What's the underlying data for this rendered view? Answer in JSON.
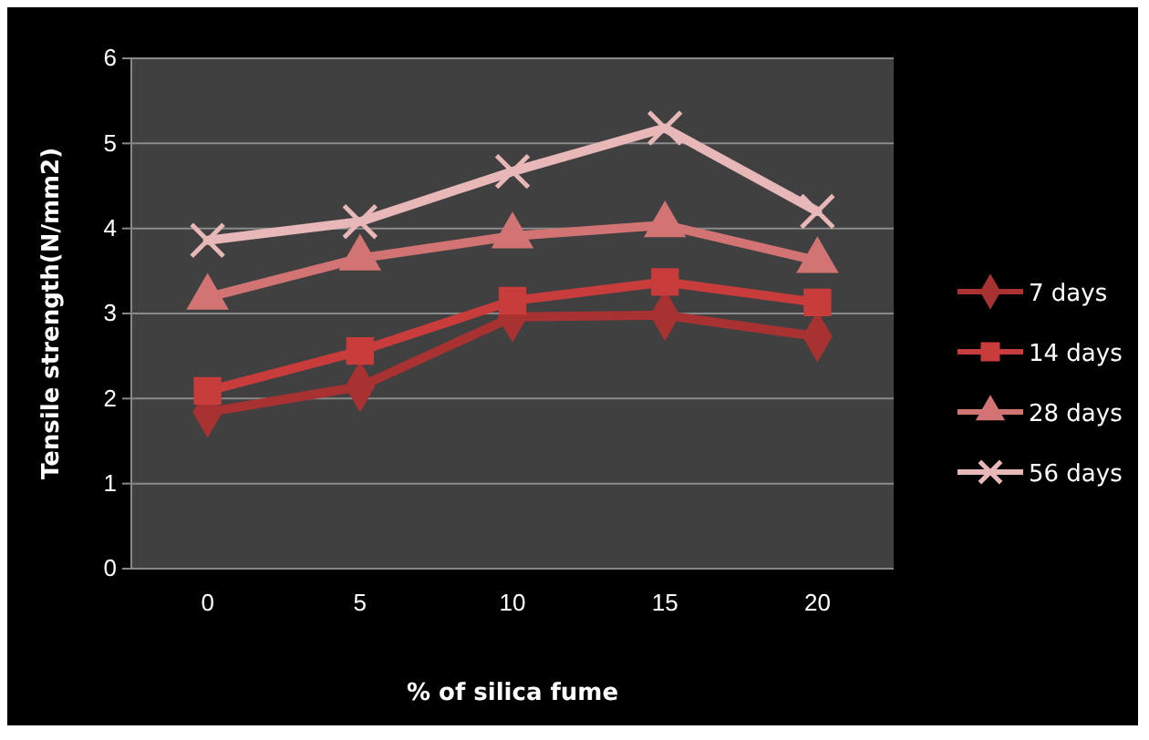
{
  "chart_data": {
    "type": "line",
    "xlabel": "% of silica fume",
    "ylabel": "Tensile strength(N/mm2)",
    "categories": [
      "0",
      "5",
      "10",
      "15",
      "20"
    ],
    "ylim": [
      0,
      6
    ],
    "yticks": [
      0,
      1,
      2,
      3,
      4,
      5,
      6
    ],
    "grid": "y",
    "legend": "right",
    "series": [
      {
        "name": "7 days",
        "color": "#a83232",
        "marker": "diamond",
        "values": [
          1.84,
          2.14,
          2.96,
          2.98,
          2.73
        ]
      },
      {
        "name": "14 days",
        "color": "#c83c3c",
        "marker": "square",
        "values": [
          2.09,
          2.56,
          3.15,
          3.37,
          3.13
        ]
      },
      {
        "name": "28 days",
        "color": "#d27474",
        "marker": "triangle",
        "values": [
          3.19,
          3.65,
          3.91,
          4.04,
          3.62
        ]
      },
      {
        "name": "56 days",
        "color": "#e8b8b8",
        "marker": "cross",
        "values": [
          3.86,
          4.08,
          4.67,
          5.18,
          4.2
        ]
      }
    ]
  }
}
